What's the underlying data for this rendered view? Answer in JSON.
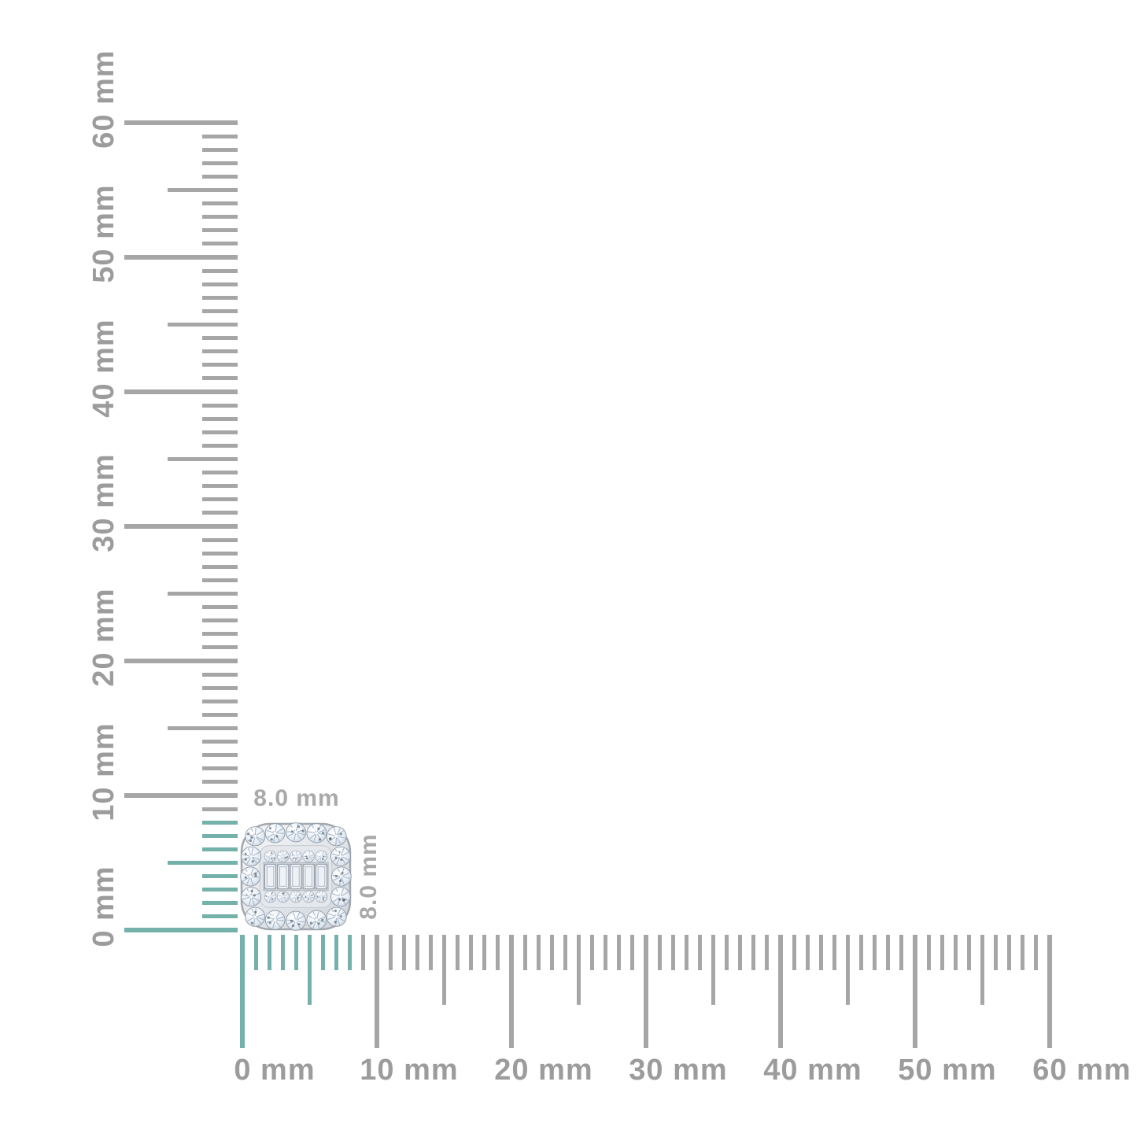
{
  "page": {
    "background": "#ffffff",
    "description": "Jewelry product image shown against corner millimeter rulers"
  },
  "colors": {
    "tick_gray": "#a6a6a6",
    "tick_highlight_teal": "#74b1aa",
    "ruler_label_gray": "#9c9c9c",
    "dimension_label_gray": "#a9a9a9",
    "metal_light": "#f6f7f9",
    "metal_dark": "#cfd4d9",
    "metal_stroke": "#a3a8ae",
    "stone_stroke": "#8d98a4",
    "facet_line": "#9cadc0",
    "facet_dark": "#38434f"
  },
  "rulers": {
    "unit": "mm",
    "range_mm": 60,
    "minor_step_mm": 1,
    "half_step_mm": 5,
    "major_step_mm": 10,
    "highlighted_extent_mm": 8,
    "vertical": {
      "labels": [
        "0 mm",
        "10 mm",
        "20 mm",
        "30 mm",
        "40 mm",
        "50 mm",
        "60 mm"
      ]
    },
    "horizontal": {
      "labels": [
        "0 mm",
        "10 mm",
        "20 mm",
        "30 mm",
        "40 mm",
        "50 mm",
        "60 mm"
      ]
    }
  },
  "item": {
    "type": "cushion-shaped diamond cluster stud with round halo, round pave rows and center row of baguette diamonds",
    "width_label": "8.0 mm",
    "height_label": "8.0 mm"
  }
}
